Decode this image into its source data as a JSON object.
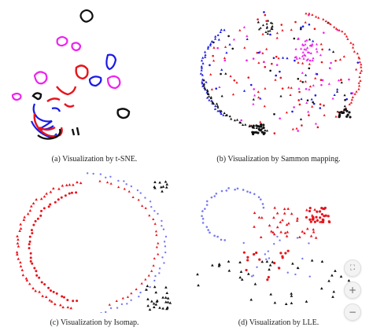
{
  "captions": {
    "a": "(a)  Visualization by t-SNE.",
    "b": "(b)  Visualization by Sammon mapping.",
    "c": "(c)  Visualization by Isomap.",
    "d": "(d)  Visualization by LLE."
  },
  "colors": {
    "red": "#e8141c",
    "blue": "#1a1ae6",
    "magenta": "#ee22ee",
    "black": "#111111",
    "lightblue": "#7a7af0"
  },
  "zoom_controls": {
    "fit_icon": "fit-screen-icon",
    "zoom_in_icon": "plus-icon",
    "zoom_out_icon": "minus-icon",
    "fit_symbol": "⛶",
    "zoom_in_symbol": "+",
    "zoom_out_symbol": "−"
  }
}
